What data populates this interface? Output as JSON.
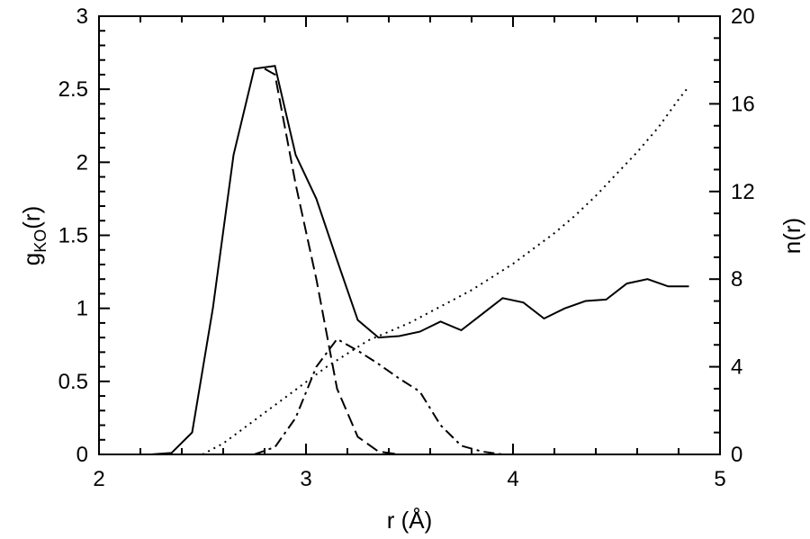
{
  "chart_data": {
    "type": "line",
    "xlabel": "r (Å)",
    "ylabel_left_main": "g",
    "ylabel_left_sub": "KO",
    "ylabel_left_tail": "(r)",
    "ylabel_right": "n(r)",
    "xlim": [
      2,
      5
    ],
    "ylim_left": [
      0,
      3
    ],
    "ylim_right": [
      0,
      20
    ],
    "xticks": [
      "2",
      "3",
      "4",
      "5"
    ],
    "yticks_left": [
      "0",
      "0.5",
      "1",
      "1.5",
      "2",
      "2.5",
      "3"
    ],
    "yticks_right": [
      "0",
      "4",
      "8",
      "12",
      "16",
      "20"
    ],
    "grid": false,
    "series": [
      {
        "axis": "left",
        "style": "solid",
        "x": [
          2.25,
          2.35,
          2.45,
          2.55,
          2.65,
          2.75,
          2.85,
          2.95,
          3.05,
          3.15,
          3.25,
          3.35,
          3.45,
          3.55,
          3.65,
          3.75,
          3.85,
          3.95,
          4.05,
          4.15,
          4.25,
          4.35,
          4.45,
          4.55,
          4.65,
          4.75,
          4.85
        ],
        "y": [
          0.0,
          0.01,
          0.15,
          1.0,
          2.05,
          2.64,
          2.66,
          2.05,
          1.75,
          1.33,
          0.92,
          0.8,
          0.81,
          0.84,
          0.91,
          0.85,
          0.96,
          1.07,
          1.04,
          0.93,
          1.0,
          1.05,
          1.06,
          1.17,
          1.2,
          1.15,
          1.15
        ]
      },
      {
        "axis": "left",
        "style": "dashed",
        "x": [
          2.8,
          2.85,
          2.95,
          3.05,
          3.15,
          3.25,
          3.35,
          3.45
        ],
        "y": [
          2.64,
          2.6,
          1.85,
          1.2,
          0.45,
          0.12,
          0.02,
          0.0
        ]
      },
      {
        "axis": "left",
        "style": "dashdot",
        "x": [
          2.75,
          2.85,
          2.95,
          3.05,
          3.15,
          3.25,
          3.35,
          3.45,
          3.55,
          3.65,
          3.75,
          3.85,
          3.95,
          4.05
        ],
        "y": [
          0.0,
          0.05,
          0.25,
          0.6,
          0.79,
          0.71,
          0.62,
          0.52,
          0.43,
          0.2,
          0.06,
          0.02,
          0.0,
          0.0
        ]
      },
      {
        "axis": "right",
        "style": "dotted",
        "x": [
          2.5,
          2.6,
          2.7,
          2.8,
          2.9,
          3.0,
          3.1,
          3.2,
          3.3,
          3.4,
          3.5,
          3.6,
          3.7,
          3.8,
          3.9,
          4.0,
          4.1,
          4.2,
          4.3,
          4.4,
          4.5,
          4.6,
          4.7,
          4.8,
          4.85
        ],
        "y": [
          0.0,
          0.5,
          1.2,
          1.9,
          2.6,
          3.3,
          4.0,
          4.6,
          5.2,
          5.6,
          6.0,
          6.5,
          7.0,
          7.5,
          8.1,
          8.7,
          9.4,
          10.1,
          10.9,
          11.8,
          12.8,
          13.8,
          14.9,
          16.2,
          16.8
        ]
      }
    ]
  }
}
